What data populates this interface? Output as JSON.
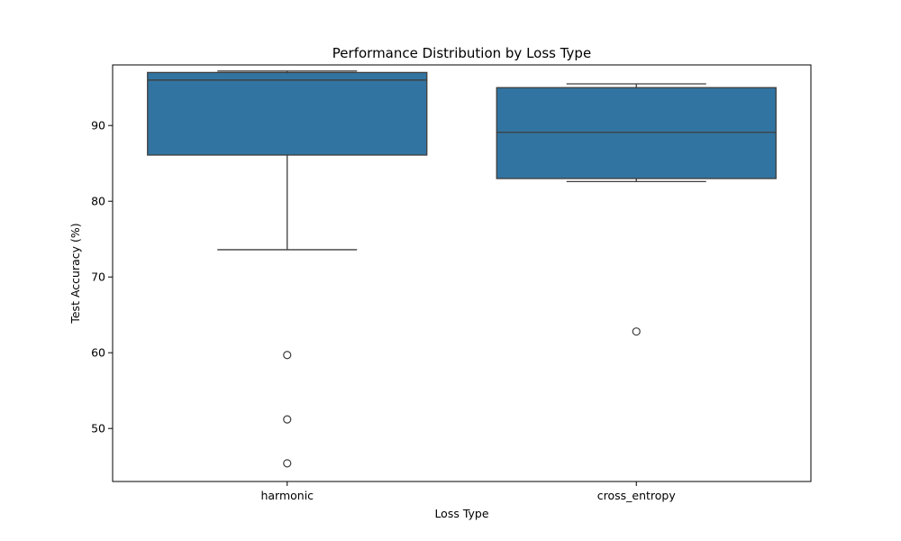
{
  "chart_data": {
    "type": "box",
    "title": "Performance Distribution by Loss Type",
    "xlabel": "Loss Type",
    "ylabel": "Test Accuracy (%)",
    "categories": [
      "harmonic",
      "cross_entropy"
    ],
    "ylim": [
      43,
      98
    ],
    "yticks": [
      50,
      60,
      70,
      80,
      90
    ],
    "grid": false,
    "boxes": [
      {
        "category": "harmonic",
        "whisker_low": 73.6,
        "q1": 86.1,
        "median": 96.0,
        "q3": 97.0,
        "whisker_high": 97.2,
        "outliers": [
          59.7,
          51.2,
          45.4
        ]
      },
      {
        "category": "cross_entropy",
        "whisker_low": 82.6,
        "q1": 83.0,
        "median": 89.1,
        "q3": 95.0,
        "whisker_high": 95.5,
        "outliers": [
          62.8
        ]
      }
    ],
    "colors": {
      "box_fill": "#3274a1",
      "line": "#3d3d3d"
    }
  }
}
